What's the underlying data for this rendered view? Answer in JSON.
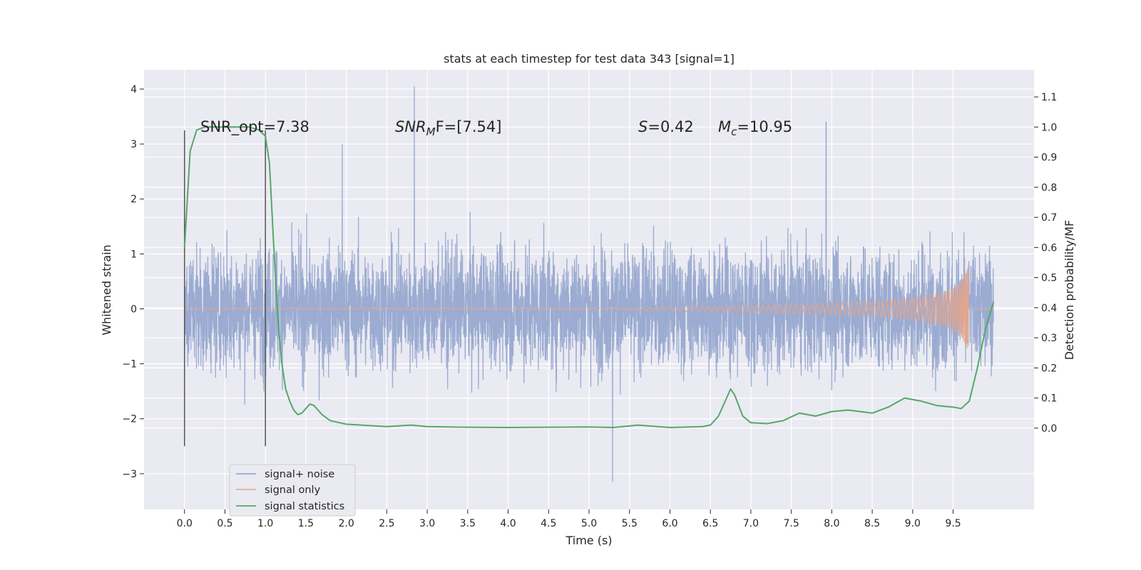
{
  "chart_data": {
    "type": "line",
    "title": "stats at each timestep for test data 343 [signal=1]",
    "xlabel": "Time (s)",
    "ylabel_left": "Whitened strain",
    "ylabel_right": "Detection probability/MF",
    "xlim": [
      -0.5,
      10.5
    ],
    "ylim_left": [
      -3.65,
      4.35
    ],
    "ylim_right": [
      -0.27,
      1.19
    ],
    "x_ticks": [
      0.0,
      0.5,
      1.0,
      1.5,
      2.0,
      2.5,
      3.0,
      3.5,
      4.0,
      4.5,
      5.0,
      5.5,
      6.0,
      6.5,
      7.0,
      7.5,
      8.0,
      8.5,
      9.0,
      9.5
    ],
    "x_tick_labels": [
      "0.0",
      "0.5",
      "1.0",
      "1.5",
      "2.0",
      "2.5",
      "3.0",
      "3.5",
      "4.0",
      "4.5",
      "5.0",
      "5.5",
      "6.0",
      "6.5",
      "7.0",
      "7.5",
      "8.0",
      "8.5",
      "9.0",
      "9.5"
    ],
    "y_left_ticks": [
      4,
      3,
      2,
      1,
      0,
      -1,
      -2,
      -3
    ],
    "y_left_tick_labels": [
      "4",
      "3",
      "2",
      "1",
      "0",
      "−1",
      "−2",
      "−3"
    ],
    "y_right_ticks": [
      1.1,
      1.0,
      0.9,
      0.8,
      0.7,
      0.6,
      0.5,
      0.4,
      0.3,
      0.2,
      0.1,
      0.0
    ],
    "y_right_tick_labels": [
      "1.1",
      "1.0",
      "0.9",
      "0.8",
      "0.7",
      "0.6",
      "0.5",
      "0.4",
      "0.3",
      "0.2",
      "0.1",
      "0.0"
    ],
    "grid": true,
    "legend_position": "lower-left",
    "annotations": [
      {
        "label": "SNR_opt=7.38",
        "math": false
      },
      {
        "label": "SNR",
        "sub": "M",
        "rest": "F=[7.54]",
        "math": true
      },
      {
        "label": "S",
        "rest": "=0.42",
        "math": true
      },
      {
        "label": "M",
        "sub": "c",
        "rest": "=10.95",
        "math": true
      }
    ],
    "window_markers_x": [
      0.0,
      1.0
    ],
    "window_markers_yrange": [
      -2.5,
      3.25
    ],
    "series": [
      {
        "name": "signal+ noise",
        "color": "#8da0cb",
        "axis": "left",
        "x_range": [
          0.0,
          10.0
        ],
        "envelope": {
          "typical_amplitude": 1.0,
          "peak_max": 4.05,
          "peak_min": -3.15
        },
        "notable_peaks": [
          [
            2.84,
            4.05
          ],
          [
            7.93,
            3.4
          ],
          [
            5.29,
            -3.15
          ],
          [
            1.95,
            3.0
          ]
        ]
      },
      {
        "name": "signal only",
        "color": "#e5a48a",
        "axis": "left",
        "x": [
          0.0,
          5.0,
          6.0,
          7.0,
          8.0,
          8.5,
          9.0,
          9.3,
          9.5,
          9.6,
          9.65,
          9.69,
          9.7,
          10.0
        ],
        "amplitude": [
          0.01,
          0.02,
          0.04,
          0.07,
          0.11,
          0.14,
          0.2,
          0.28,
          0.37,
          0.5,
          0.65,
          0.8,
          0.0,
          0.0
        ]
      },
      {
        "name": "signal statistics",
        "color": "#55a868",
        "axis": "right",
        "x": [
          0.0,
          0.07,
          0.15,
          0.25,
          0.4,
          0.6,
          0.8,
          0.92,
          1.0,
          1.05,
          1.1,
          1.15,
          1.2,
          1.25,
          1.3,
          1.35,
          1.4,
          1.45,
          1.5,
          1.55,
          1.6,
          1.7,
          1.8,
          2.0,
          2.5,
          2.8,
          3.0,
          3.5,
          4.0,
          4.5,
          5.0,
          5.3,
          5.6,
          6.0,
          6.4,
          6.5,
          6.6,
          6.7,
          6.75,
          6.8,
          6.9,
          7.0,
          7.2,
          7.4,
          7.6,
          7.8,
          8.0,
          8.2,
          8.5,
          8.7,
          8.9,
          9.1,
          9.3,
          9.5,
          9.6,
          9.7,
          9.8,
          9.9,
          10.0
        ],
        "y": [
          0.6,
          0.92,
          0.99,
          1.0,
          1.0,
          1.0,
          1.0,
          0.99,
          0.97,
          0.88,
          0.62,
          0.38,
          0.22,
          0.13,
          0.09,
          0.06,
          0.045,
          0.05,
          0.065,
          0.08,
          0.075,
          0.045,
          0.025,
          0.013,
          0.005,
          0.01,
          0.005,
          0.003,
          0.002,
          0.003,
          0.004,
          0.002,
          0.01,
          0.002,
          0.005,
          0.01,
          0.04,
          0.1,
          0.13,
          0.11,
          0.04,
          0.018,
          0.015,
          0.025,
          0.05,
          0.04,
          0.055,
          0.06,
          0.05,
          0.07,
          0.1,
          0.09,
          0.075,
          0.07,
          0.065,
          0.09,
          0.2,
          0.33,
          0.42
        ]
      }
    ]
  }
}
